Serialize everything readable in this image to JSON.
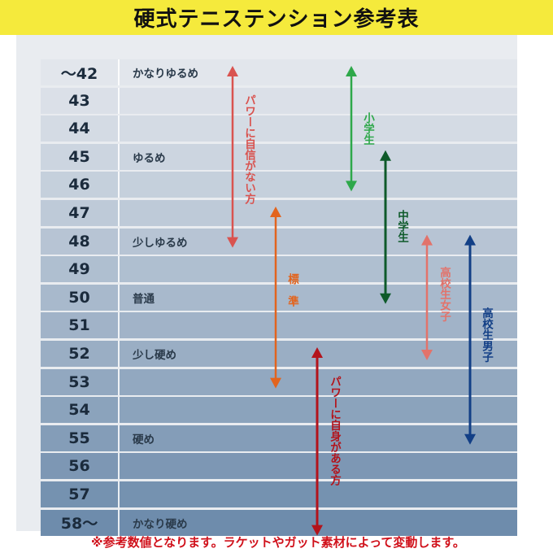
{
  "title": "硬式テニステンション参考表",
  "rows": [
    {
      "tension": "～42",
      "label": "かなりゆるめ"
    },
    {
      "tension": "43",
      "label": ""
    },
    {
      "tension": "44",
      "label": ""
    },
    {
      "tension": "45",
      "label": "ゆるめ"
    },
    {
      "tension": "46",
      "label": ""
    },
    {
      "tension": "47",
      "label": ""
    },
    {
      "tension": "48",
      "label": "少しゆるめ"
    },
    {
      "tension": "49",
      "label": ""
    },
    {
      "tension": "50",
      "label": "普通"
    },
    {
      "tension": "51",
      "label": ""
    },
    {
      "tension": "52",
      "label": "少し硬め"
    },
    {
      "tension": "53",
      "label": ""
    },
    {
      "tension": "54",
      "label": ""
    },
    {
      "tension": "55",
      "label": "硬め"
    },
    {
      "tension": "56",
      "label": ""
    },
    {
      "tension": "57",
      "label": ""
    },
    {
      "tension": "58～",
      "label": "かなり硬め"
    }
  ],
  "ranges": [
    {
      "label": "パワーに自信がない方",
      "from": "～42",
      "to": "48",
      "color": "#d9534f"
    },
    {
      "label": "標準",
      "from": "47",
      "to": "53",
      "color": "#e2641e"
    },
    {
      "label": "パワーに自身がある方",
      "from": "52",
      "to": "58～",
      "color": "#b3131b"
    },
    {
      "label": "小学生",
      "from": "～42",
      "to": "46",
      "color": "#2ea84a"
    },
    {
      "label": "中学生",
      "from": "45",
      "to": "50",
      "color": "#0e5a2a"
    },
    {
      "label": "高校生女子",
      "from": "48",
      "to": "52",
      "color": "#e2736b"
    },
    {
      "label": "高校生男子",
      "from": "48",
      "to": "55",
      "color": "#123f86"
    }
  ],
  "footnote": "※参考数値となります。ラケットやガット素材によって変動します。"
}
